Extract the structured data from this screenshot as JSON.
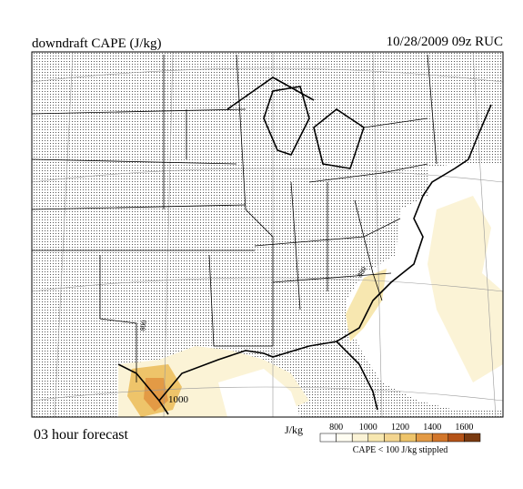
{
  "header": {
    "title": "downdraft CAPE (J/kg)",
    "run": "10/28/2009  09z  RUC"
  },
  "footer": {
    "forecast": "03 hour forecast"
  },
  "map": {
    "contour_labels": [
      {
        "text": "800"
      },
      {
        "text": "1000"
      },
      {
        "text": "800"
      }
    ]
  },
  "legend": {
    "unit": "J/kg",
    "ticks": [
      800,
      1000,
      1200,
      1400,
      1600
    ],
    "colors": [
      "#ffffff",
      "#fffdf2",
      "#fbf3d6",
      "#f7e7b0",
      "#f3d590",
      "#eec46a",
      "#e39a45",
      "#d2762a",
      "#b55318",
      "#7a3a10"
    ],
    "note": "CAPE < 100 J/kg stippled"
  }
}
